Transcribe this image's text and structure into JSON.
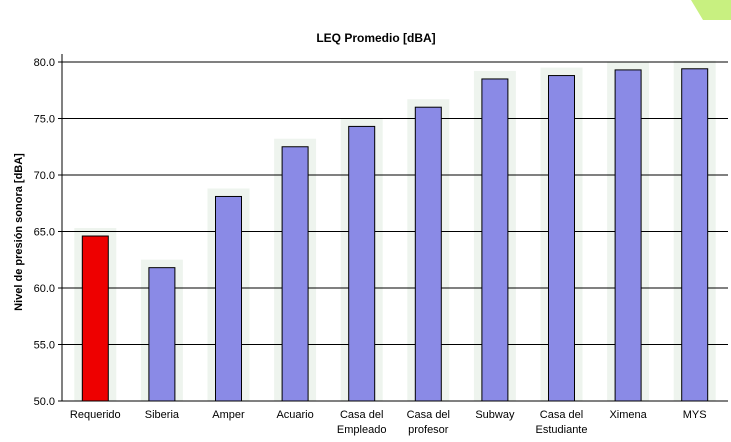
{
  "chart_data": {
    "type": "bar",
    "title": "LEQ Promedio [dBA]",
    "ylabel": "Nivel de presión sonora [dBA]",
    "xlabel": "",
    "ylim": [
      50,
      80
    ],
    "yticks": [
      "50.0",
      "55.0",
      "60.0",
      "65.0",
      "70.0",
      "75.0",
      "80.0"
    ],
    "grid": true,
    "legend": "none",
    "categories": [
      [
        "Requerido"
      ],
      [
        "Siberia"
      ],
      [
        "Amper"
      ],
      [
        "Acuario"
      ],
      [
        "Casa del",
        "Empleado"
      ],
      [
        "Casa del",
        "profesor"
      ],
      [
        "Subway"
      ],
      [
        "Casa del",
        "Estudiante"
      ],
      [
        "Ximena"
      ],
      [
        "MYS"
      ]
    ],
    "values": [
      64.6,
      61.8,
      68.1,
      72.5,
      74.3,
      76.0,
      78.5,
      78.8,
      79.3,
      79.4
    ],
    "colors": {
      "highlight": "#ee0000",
      "bar": "#8a8ae6",
      "shadow": "#eef4ee",
      "grid": "#000000",
      "corner": "#c8f080"
    }
  }
}
